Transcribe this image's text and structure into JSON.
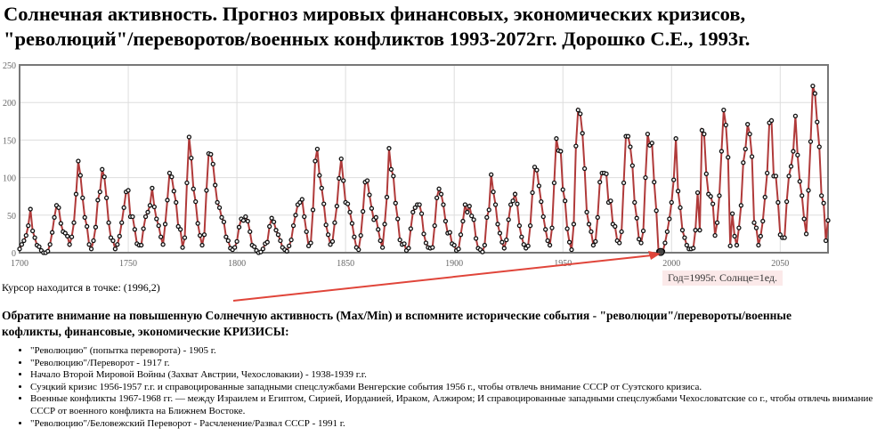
{
  "title_line1": "Солнечная активность. Прогноз мировых финансовых, экономических кризисов,",
  "title_line2": "\"революций\"/переворотов/военных конфликтов 1993-2072гг. Дорошко С.Е., 1993г.",
  "tooltip": "Год=1995г. Солнце=1ед.",
  "cursor_text": "Курсор находится в точке: (1996,2)",
  "note_line1": "Обратите внимание на повышенную Солнечную активность (Max/Min) и вспомните исторические события - \"революции\"/перевороты/военные",
  "note_line2": "кофликты, финансовые, экономические КРИЗИСЫ:",
  "events": [
    "\"Революцию\" (попытка переворота) - 1905 г.",
    "\"Революцию\"/Переворот - 1917 г.",
    "Начало Второй Мировой Войны (Захват Австрии, Чехословакии) - 1938-1939 г.г.",
    "Суэцкий кризис 1956-1957 г.г. и справоцированные западными спецслужбами Венгерские события 1956 г., чтобы отвлечь внимание СССР от Суэтского кризиса.",
    "Военные конфликты 1967-1968 гг. — между Израилем и Египтом, Сирией, Иорданией, Ираком, Алжиром; И справоцированные западными спецслужбами Чехословатские со г., чтобы отвлечь внимание СССР от военного конфликта на Ближнем Востоке.",
    "\"Революцию\"/Беловежский Переворот - Расчленение/Развал СССР - 1991 г."
  ],
  "colors": {
    "line": "#b03a3a",
    "arrow": "#e0453a",
    "tooltip_bg": "#fbe9e9"
  },
  "chart_data": {
    "type": "line",
    "title": "Солнечная активность",
    "xlabel": "",
    "ylabel": "",
    "xlim": [
      1700,
      2072
    ],
    "ylim": [
      0,
      250
    ],
    "x_ticks": [
      "1700",
      "1750",
      "1800",
      "1850",
      "1900",
      "1950",
      "2000",
      "2050"
    ],
    "y_ticks": [
      "0",
      "50",
      "100",
      "150",
      "200",
      "250"
    ],
    "grid": true,
    "x_start": 1700,
    "values": [
      5,
      11,
      16,
      23,
      36,
      58,
      29,
      20,
      10,
      8,
      3,
      0,
      0,
      2,
      11,
      27,
      47,
      63,
      60,
      39,
      28,
      26,
      22,
      11,
      21,
      40,
      78,
      122,
      103,
      73,
      47,
      35,
      11,
      5,
      16,
      34,
      70,
      81,
      111,
      101,
      73,
      40,
      20,
      16,
      5,
      11,
      22,
      40,
      60,
      81,
      83,
      48,
      48,
      31,
      12,
      10,
      10,
      32,
      48,
      54,
      63,
      86,
      61,
      45,
      36,
      21,
      11,
      38,
      70,
      106,
      101,
      82,
      67,
      35,
      31,
      7,
      20,
      93,
      154,
      126,
      85,
      68,
      39,
      23,
      10,
      24,
      83,
      132,
      131,
      118,
      90,
      67,
      60,
      47,
      41,
      21,
      16,
      6,
      4,
      7,
      15,
      34,
      45,
      43,
      48,
      42,
      28,
      10,
      8,
      3,
      0,
      1,
      5,
      12,
      14,
      35,
      46,
      41,
      30,
      24,
      16,
      7,
      4,
      2,
      9,
      17,
      36,
      50,
      64,
      67,
      71,
      48,
      28,
      9,
      13,
      57,
      122,
      138,
      103,
      86,
      65,
      37,
      24,
      11,
      15,
      40,
      62,
      99,
      125,
      96,
      67,
      65,
      54,
      39,
      21,
      7,
      4,
      23,
      55,
      94,
      96,
      77,
      59,
      44,
      47,
      31,
      16,
      7,
      38,
      74,
      139,
      111,
      102,
      66,
      45,
      17,
      11,
      12,
      3,
      6,
      32,
      54,
      60,
      64,
      64,
      52,
      25,
      13,
      7,
      6,
      7,
      36,
      73,
      85,
      78,
      64,
      42,
      26,
      27,
      12,
      10,
      3,
      5,
      24,
      42,
      64,
      54,
      62,
      49,
      44,
      19,
      6,
      4,
      1,
      10,
      47,
      57,
      104,
      81,
      64,
      38,
      26,
      14,
      6,
      17,
      44,
      64,
      69,
      78,
      65,
      36,
      21,
      11,
      6,
      9,
      36,
      80,
      114,
      110,
      89,
      68,
      48,
      31,
      16,
      10,
      33,
      93,
      152,
      136,
      135,
      84,
      69,
      32,
      14,
      4,
      38,
      142,
      190,
      185,
      159,
      112,
      54,
      38,
      28,
      10,
      15,
      47,
      94,
      106,
      106,
      105,
      67,
      69,
      38,
      35,
      16,
      13,
      28,
      93,
      155,
      155,
      141,
      116,
      67,
      46,
      18,
      13,
      29,
      100,
      158,
      143,
      146,
      94,
      56,
      2,
      1,
      2,
      13,
      28,
      45,
      67,
      97,
      152,
      82,
      60,
      30,
      20,
      10,
      5,
      5,
      6,
      30,
      80,
      30,
      163,
      158,
      105,
      78,
      75,
      65,
      23,
      40,
      76,
      135,
      190,
      170,
      127,
      9,
      52,
      22,
      10,
      33,
      63,
      120,
      138,
      171,
      158,
      128,
      40,
      33,
      10,
      22,
      42,
      74,
      106,
      173,
      176,
      102,
      102,
      67,
      24,
      20,
      20,
      68,
      102,
      115,
      135,
      182,
      130,
      95,
      76,
      45,
      25,
      83,
      148,
      222,
      212,
      174,
      141,
      76,
      66,
      16,
      43
    ],
    "highlight": {
      "x": 1995,
      "y": 1
    }
  }
}
